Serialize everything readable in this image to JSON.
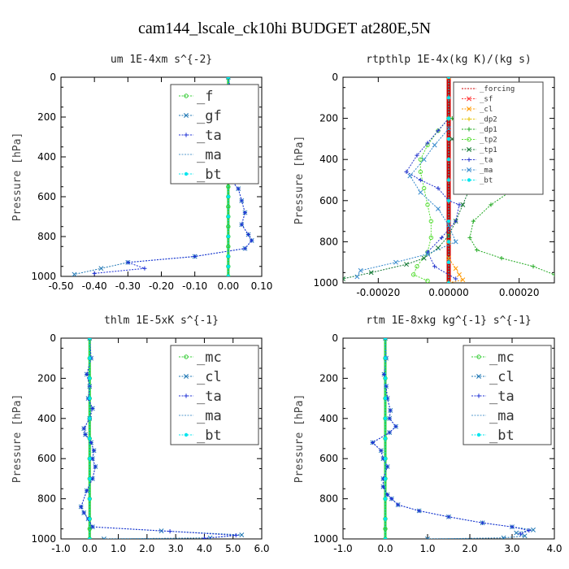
{
  "figure_title": "cam144_lscale_ck10hi  BUDGET at280E,5N",
  "colors": {
    "mc": "#33cc33",
    "f": "#33cc33",
    "gf": "#1f77b4",
    "cl": "#1f77b4",
    "ta": "#1c2fd6",
    "ma": "#5599cc",
    "bt": "#00e5ee",
    "forcing": "#cc0000",
    "sf": "#ff3333",
    "cl_rt": "#ff9900",
    "dp2": "#e6c200",
    "dp1": "#22aa22",
    "tp2": "#55dd33",
    "tp1": "#117733",
    "ta_rt": "#2233cc",
    "ma_rt": "#3388cc",
    "bt_rt": "#00e5ee"
  },
  "chart_data": [
    {
      "type": "line",
      "title": "um  1E-4xm s^{-2}",
      "ylabel": "Pressure [hPa]",
      "xlim": [
        -0.5,
        0.1
      ],
      "ylim": [
        1000,
        0
      ],
      "xticks": [
        "-0.50",
        "-0.40",
        "-0.30",
        "-0.20",
        "-0.10",
        "0.00",
        "0.10"
      ],
      "yticks": [
        "0",
        "200",
        "400",
        "600",
        "800",
        "1000"
      ],
      "legend": {
        "position": "top-right",
        "labels": [
          "_f",
          "_gf",
          "_ta",
          "_ma",
          "_bt"
        ],
        "size": "large"
      },
      "series": [
        {
          "name": "_f",
          "key": "f",
          "marker": "o",
          "width": 3,
          "x": [
            0,
            0,
            0,
            0,
            0,
            0,
            0,
            0,
            0,
            0,
            0,
            0,
            0,
            0,
            0,
            0,
            0,
            0,
            0,
            0,
            0
          ],
          "y": [
            0,
            50,
            100,
            150,
            200,
            250,
            300,
            350,
            400,
            450,
            500,
            550,
            600,
            650,
            700,
            750,
            800,
            850,
            900,
            950,
            1000
          ]
        },
        {
          "name": "_gf",
          "key": "gf",
          "marker": "x",
          "width": 1,
          "x": [
            0,
            0.01,
            0.03,
            0.05,
            0.04,
            0.02,
            0.01,
            0.02,
            0.03,
            0.02,
            0.0,
            0.03,
            0.04,
            0.05,
            0.04,
            0.06,
            0.07,
            0.05,
            -0.1,
            -0.3,
            -0.38,
            -0.46
          ],
          "y": [
            0,
            100,
            140,
            180,
            210,
            250,
            300,
            350,
            400,
            450,
            500,
            560,
            620,
            680,
            740,
            790,
            820,
            860,
            900,
            930,
            960,
            990
          ]
        },
        {
          "name": "_ta",
          "key": "ta",
          "marker": "+",
          "width": 1,
          "x": [
            0,
            0.01,
            0.03,
            0.05,
            0.04,
            0.02,
            0.01,
            0.02,
            0.03,
            0.02,
            0.0,
            0.03,
            0.04,
            0.05,
            0.04,
            0.06,
            0.07,
            0.05,
            -0.1,
            -0.3,
            -0.25,
            -0.4
          ],
          "y": [
            0,
            100,
            140,
            180,
            210,
            250,
            300,
            350,
            400,
            450,
            500,
            560,
            620,
            680,
            740,
            790,
            820,
            860,
            900,
            930,
            960,
            985
          ]
        },
        {
          "name": "_bt",
          "key": "bt",
          "marker": "dot",
          "width": 1,
          "x": [
            0,
            0,
            0,
            0,
            0,
            0,
            0,
            0,
            0,
            0,
            0,
            0
          ],
          "y": [
            0,
            100,
            200,
            300,
            400,
            500,
            600,
            700,
            800,
            900,
            950,
            1000
          ]
        }
      ]
    },
    {
      "type": "line",
      "title": "rtpthlp  1E-4x(kg K)/(kg s)",
      "ylabel": "Pressure [hPa]",
      "xlim": [
        -0.0003,
        0.0003
      ],
      "ylim": [
        1000,
        0
      ],
      "xticks": [
        "-0.00020",
        "0.00000",
        "0.00020"
      ],
      "xtick_values": [
        -0.0002,
        0.0,
        0.0002
      ],
      "yticks": [
        "0",
        "200",
        "400",
        "600",
        "800",
        "1000"
      ],
      "legend": {
        "position": "top-right",
        "labels": [
          "_forcing",
          "_sf",
          "_cl",
          "_dp2",
          "_dp1",
          "_tp2",
          "_tp1",
          "_ta",
          "_ma",
          "_bt"
        ],
        "size": "small"
      },
      "series": [
        {
          "name": "_forcing",
          "key": "forcing",
          "marker": "none",
          "width": 5,
          "x": [
            0,
            0,
            0,
            0,
            0,
            0,
            0,
            0,
            0,
            0,
            0
          ],
          "y": [
            0,
            100,
            200,
            300,
            400,
            500,
            600,
            700,
            800,
            900,
            1000
          ]
        },
        {
          "name": "_sf",
          "key": "sf",
          "marker": "x",
          "width": 1,
          "x": [
            0,
            0,
            0,
            0,
            0,
            0,
            0,
            0,
            0,
            0,
            0
          ],
          "y": [
            0,
            100,
            200,
            300,
            400,
            500,
            600,
            700,
            800,
            900,
            1000
          ]
        },
        {
          "name": "_cl",
          "key": "cl_rt",
          "marker": "x",
          "width": 1,
          "x": [
            0,
            0,
            0,
            2e-05,
            3e-05,
            4e-05,
            0
          ],
          "y": [
            0,
            800,
            880,
            930,
            960,
            985,
            1000
          ]
        },
        {
          "name": "_dp1",
          "key": "dp1",
          "marker": "+",
          "width": 1,
          "x": [
            1e-05,
            4e-05,
            8e-05,
            0.00012,
            0.00016,
            0.0002,
            0.00022,
            0.00018,
            0.00012,
            7e-05,
            6e-05,
            8e-05,
            0.00015,
            0.00024,
            0.0003
          ],
          "y": [
            200,
            250,
            300,
            350,
            400,
            450,
            490,
            550,
            620,
            700,
            780,
            840,
            880,
            920,
            960
          ]
        },
        {
          "name": "_tp2",
          "key": "tp2",
          "marker": "o",
          "width": 1,
          "x": [
            0,
            -3e-05,
            -6e-05,
            -8e-05,
            -8e-05,
            -7e-05,
            -6e-05,
            -5e-05,
            -5e-05,
            -6e-05,
            -9e-05,
            -0.0001,
            -6e-05
          ],
          "y": [
            200,
            260,
            330,
            400,
            460,
            540,
            620,
            700,
            780,
            850,
            920,
            960,
            990
          ]
        },
        {
          "name": "_tp1",
          "key": "tp1",
          "marker": "x",
          "width": 1,
          "x": [
            1e-05,
            3e-05,
            5e-05,
            6e-05,
            4e-05,
            2e-05,
            0.0,
            -3e-05,
            -7e-05,
            -0.00012,
            -0.00022,
            -0.0003
          ],
          "y": [
            300,
            380,
            460,
            540,
            620,
            700,
            770,
            830,
            880,
            910,
            950,
            980
          ]
        },
        {
          "name": "_ta",
          "key": "ta_rt",
          "marker": "+",
          "width": 1,
          "x": [
            0,
            -3e-05,
            -6e-05,
            -9e-05,
            -0.00012,
            -8e-05,
            -3e-05,
            0.0,
            3e-05,
            2e-05,
            -2e-05,
            -6e-05,
            -4e-05,
            2e-05
          ],
          "y": [
            200,
            260,
            320,
            380,
            460,
            500,
            540,
            600,
            620,
            700,
            780,
            850,
            920,
            980
          ]
        },
        {
          "name": "_ma",
          "key": "ma_rt",
          "marker": "x",
          "width": 1,
          "x": [
            0,
            -4e-05,
            -7e-05,
            -0.00011,
            -8e-05,
            -3e-05,
            0.0,
            2e-05,
            -6e-05,
            -0.00015,
            -0.00025,
            -0.00026
          ],
          "y": [
            250,
            330,
            400,
            480,
            560,
            640,
            720,
            800,
            860,
            900,
            940,
            970
          ]
        },
        {
          "name": "_bt",
          "key": "bt_rt",
          "marker": "dot",
          "width": 1,
          "x": [
            0,
            0,
            0,
            0,
            0,
            0,
            0,
            0,
            0,
            0,
            0
          ],
          "y": [
            0,
            100,
            200,
            300,
            400,
            500,
            600,
            700,
            800,
            900,
            1000
          ]
        }
      ]
    },
    {
      "type": "line",
      "title": "thlm  1E-5xK s^{-1}",
      "ylabel": "Pressure [hPa]",
      "xlim": [
        -1.0,
        6.0
      ],
      "ylim": [
        1000,
        0
      ],
      "xticks": [
        "-1.0",
        "0.0",
        "1.0",
        "2.0",
        "3.0",
        "4.0",
        "5.0",
        "6.0"
      ],
      "yticks": [
        "0",
        "200",
        "400",
        "600",
        "800",
        "1000"
      ],
      "legend": {
        "position": "top-right",
        "labels": [
          "_mc",
          "_cl",
          "_ta",
          "_ma",
          "_bt"
        ],
        "size": "large"
      },
      "series": [
        {
          "name": "_mc",
          "key": "mc",
          "marker": "o",
          "width": 3,
          "x": [
            0,
            0,
            0,
            0,
            0,
            0,
            0,
            0,
            0,
            0,
            0,
            0
          ],
          "y": [
            0,
            100,
            200,
            300,
            400,
            500,
            600,
            700,
            800,
            900,
            950,
            1000
          ]
        },
        {
          "name": "_cl",
          "key": "cl",
          "marker": "x",
          "width": 1,
          "x": [
            0,
            0.05,
            -0.1,
            0.0,
            -0.05,
            0.1,
            0.0,
            -0.2,
            -0.15,
            0.05,
            0.15,
            0.1,
            0.2,
            0.1,
            -0.1,
            -0.3,
            -0.2,
            -0.05,
            0.1,
            2.5,
            5.3,
            4.2,
            0.5
          ],
          "y": [
            0,
            100,
            180,
            240,
            300,
            350,
            400,
            450,
            480,
            520,
            560,
            600,
            640,
            700,
            760,
            840,
            870,
            900,
            940,
            960,
            980,
            995,
            1000
          ]
        },
        {
          "name": "_ta",
          "key": "ta",
          "marker": "+",
          "width": 1,
          "x": [
            0,
            0.05,
            -0.1,
            0.0,
            -0.05,
            0.1,
            0.0,
            -0.2,
            -0.15,
            0.05,
            0.15,
            0.1,
            0.2,
            0.1,
            -0.1,
            -0.3,
            -0.2,
            -0.05,
            0.1,
            2.8,
            5.1,
            4.0
          ],
          "y": [
            0,
            100,
            180,
            240,
            300,
            350,
            400,
            450,
            480,
            520,
            560,
            600,
            640,
            700,
            760,
            840,
            870,
            900,
            940,
            962,
            982,
            997
          ]
        },
        {
          "name": "_bt",
          "key": "bt",
          "marker": "dot",
          "width": 1,
          "x": [
            0,
            0,
            0,
            0,
            0,
            0,
            0,
            0,
            0,
            0,
            0
          ],
          "y": [
            0,
            100,
            200,
            300,
            400,
            500,
            600,
            700,
            800,
            900,
            1000
          ]
        }
      ]
    },
    {
      "type": "line",
      "title": "rtm  1E-8xkg kg^{-1} s^{-1}",
      "ylabel": "Pressure [hPa]",
      "xlim": [
        -1.0,
        4.0
      ],
      "ylim": [
        1000,
        0
      ],
      "xticks": [
        "-1.0",
        "0.0",
        "1.0",
        "2.0",
        "3.0",
        "4.0"
      ],
      "yticks": [
        "0",
        "200",
        "400",
        "600",
        "800",
        "1000"
      ],
      "legend": {
        "position": "top-right",
        "labels": [
          "_mc",
          "_cl",
          "_ta",
          "_ma",
          "_bt"
        ],
        "size": "large"
      },
      "series": [
        {
          "name": "_mc",
          "key": "mc",
          "marker": "o",
          "width": 3,
          "x": [
            0,
            0,
            0,
            0,
            0,
            0,
            0,
            0,
            0,
            0,
            0,
            0
          ],
          "y": [
            0,
            100,
            200,
            300,
            400,
            500,
            600,
            700,
            800,
            900,
            950,
            1000
          ]
        },
        {
          "name": "_cl",
          "key": "cl",
          "marker": "x",
          "width": 1,
          "x": [
            0,
            0.02,
            -0.03,
            0.02,
            0.05,
            0.12,
            0.1,
            0.25,
            0.1,
            -0.3,
            -0.1,
            -0.05,
            0.05,
            -0.05,
            -0.05,
            0.05,
            0.15,
            0.3,
            0.8,
            1.5,
            2.3,
            3.0,
            3.5,
            3.1,
            3.3,
            2.8,
            1.0
          ],
          "y": [
            0,
            100,
            180,
            240,
            300,
            360,
            400,
            440,
            470,
            520,
            560,
            600,
            640,
            700,
            740,
            780,
            800,
            830,
            860,
            890,
            920,
            940,
            955,
            970,
            985,
            995,
            1000
          ]
        },
        {
          "name": "_ta",
          "key": "ta",
          "marker": "+",
          "width": 1,
          "x": [
            0,
            0.02,
            -0.03,
            0.02,
            0.05,
            0.12,
            0.1,
            0.25,
            0.1,
            -0.3,
            -0.1,
            -0.05,
            0.05,
            -0.05,
            -0.05,
            0.05,
            0.15,
            0.3,
            0.8,
            1.5,
            2.3,
            3.0,
            3.4,
            3.2
          ],
          "y": [
            0,
            100,
            180,
            240,
            300,
            360,
            400,
            440,
            470,
            520,
            560,
            600,
            640,
            700,
            740,
            780,
            800,
            830,
            860,
            890,
            920,
            940,
            958,
            975
          ]
        },
        {
          "name": "_bt",
          "key": "bt",
          "marker": "dot",
          "width": 1,
          "x": [
            0,
            0,
            0,
            0,
            0,
            0,
            0,
            0,
            0,
            0,
            0
          ],
          "y": [
            0,
            100,
            200,
            300,
            400,
            500,
            600,
            700,
            800,
            900,
            1000
          ]
        }
      ]
    }
  ]
}
